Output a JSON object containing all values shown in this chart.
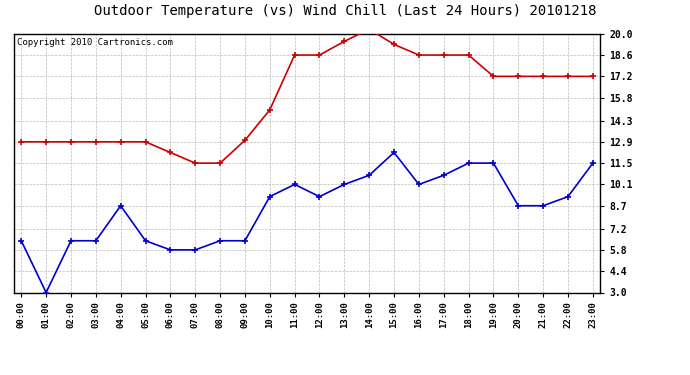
{
  "title": "Outdoor Temperature (vs) Wind Chill (Last 24 Hours) 20101218",
  "copyright": "Copyright 2010 Cartronics.com",
  "hours": [
    "00:00",
    "01:00",
    "02:00",
    "03:00",
    "04:00",
    "05:00",
    "06:00",
    "07:00",
    "08:00",
    "09:00",
    "10:00",
    "11:00",
    "12:00",
    "13:00",
    "14:00",
    "15:00",
    "16:00",
    "17:00",
    "18:00",
    "19:00",
    "20:00",
    "21:00",
    "22:00",
    "23:00"
  ],
  "red_data": [
    12.9,
    12.9,
    12.9,
    12.9,
    12.9,
    12.9,
    12.2,
    11.5,
    11.5,
    13.0,
    15.0,
    18.6,
    18.6,
    19.5,
    20.3,
    19.3,
    18.6,
    18.6,
    18.6,
    17.2,
    17.2,
    17.2,
    17.2,
    17.2
  ],
  "blue_data": [
    6.4,
    3.0,
    6.4,
    6.4,
    8.7,
    6.4,
    5.8,
    5.8,
    6.4,
    6.4,
    9.3,
    10.1,
    9.3,
    10.1,
    10.7,
    12.2,
    10.1,
    10.7,
    11.5,
    11.5,
    8.7,
    8.7,
    9.3,
    11.5
  ],
  "ylim": [
    3.0,
    20.0
  ],
  "yticks": [
    3.0,
    4.4,
    5.8,
    7.2,
    8.7,
    10.1,
    11.5,
    12.9,
    14.3,
    15.8,
    17.2,
    18.6,
    20.0
  ],
  "red_color": "#cc0000",
  "blue_color": "#0000cc",
  "background_color": "#ffffff",
  "grid_color": "#bbbbbb",
  "title_fontsize": 10,
  "copyright_fontsize": 6.5
}
